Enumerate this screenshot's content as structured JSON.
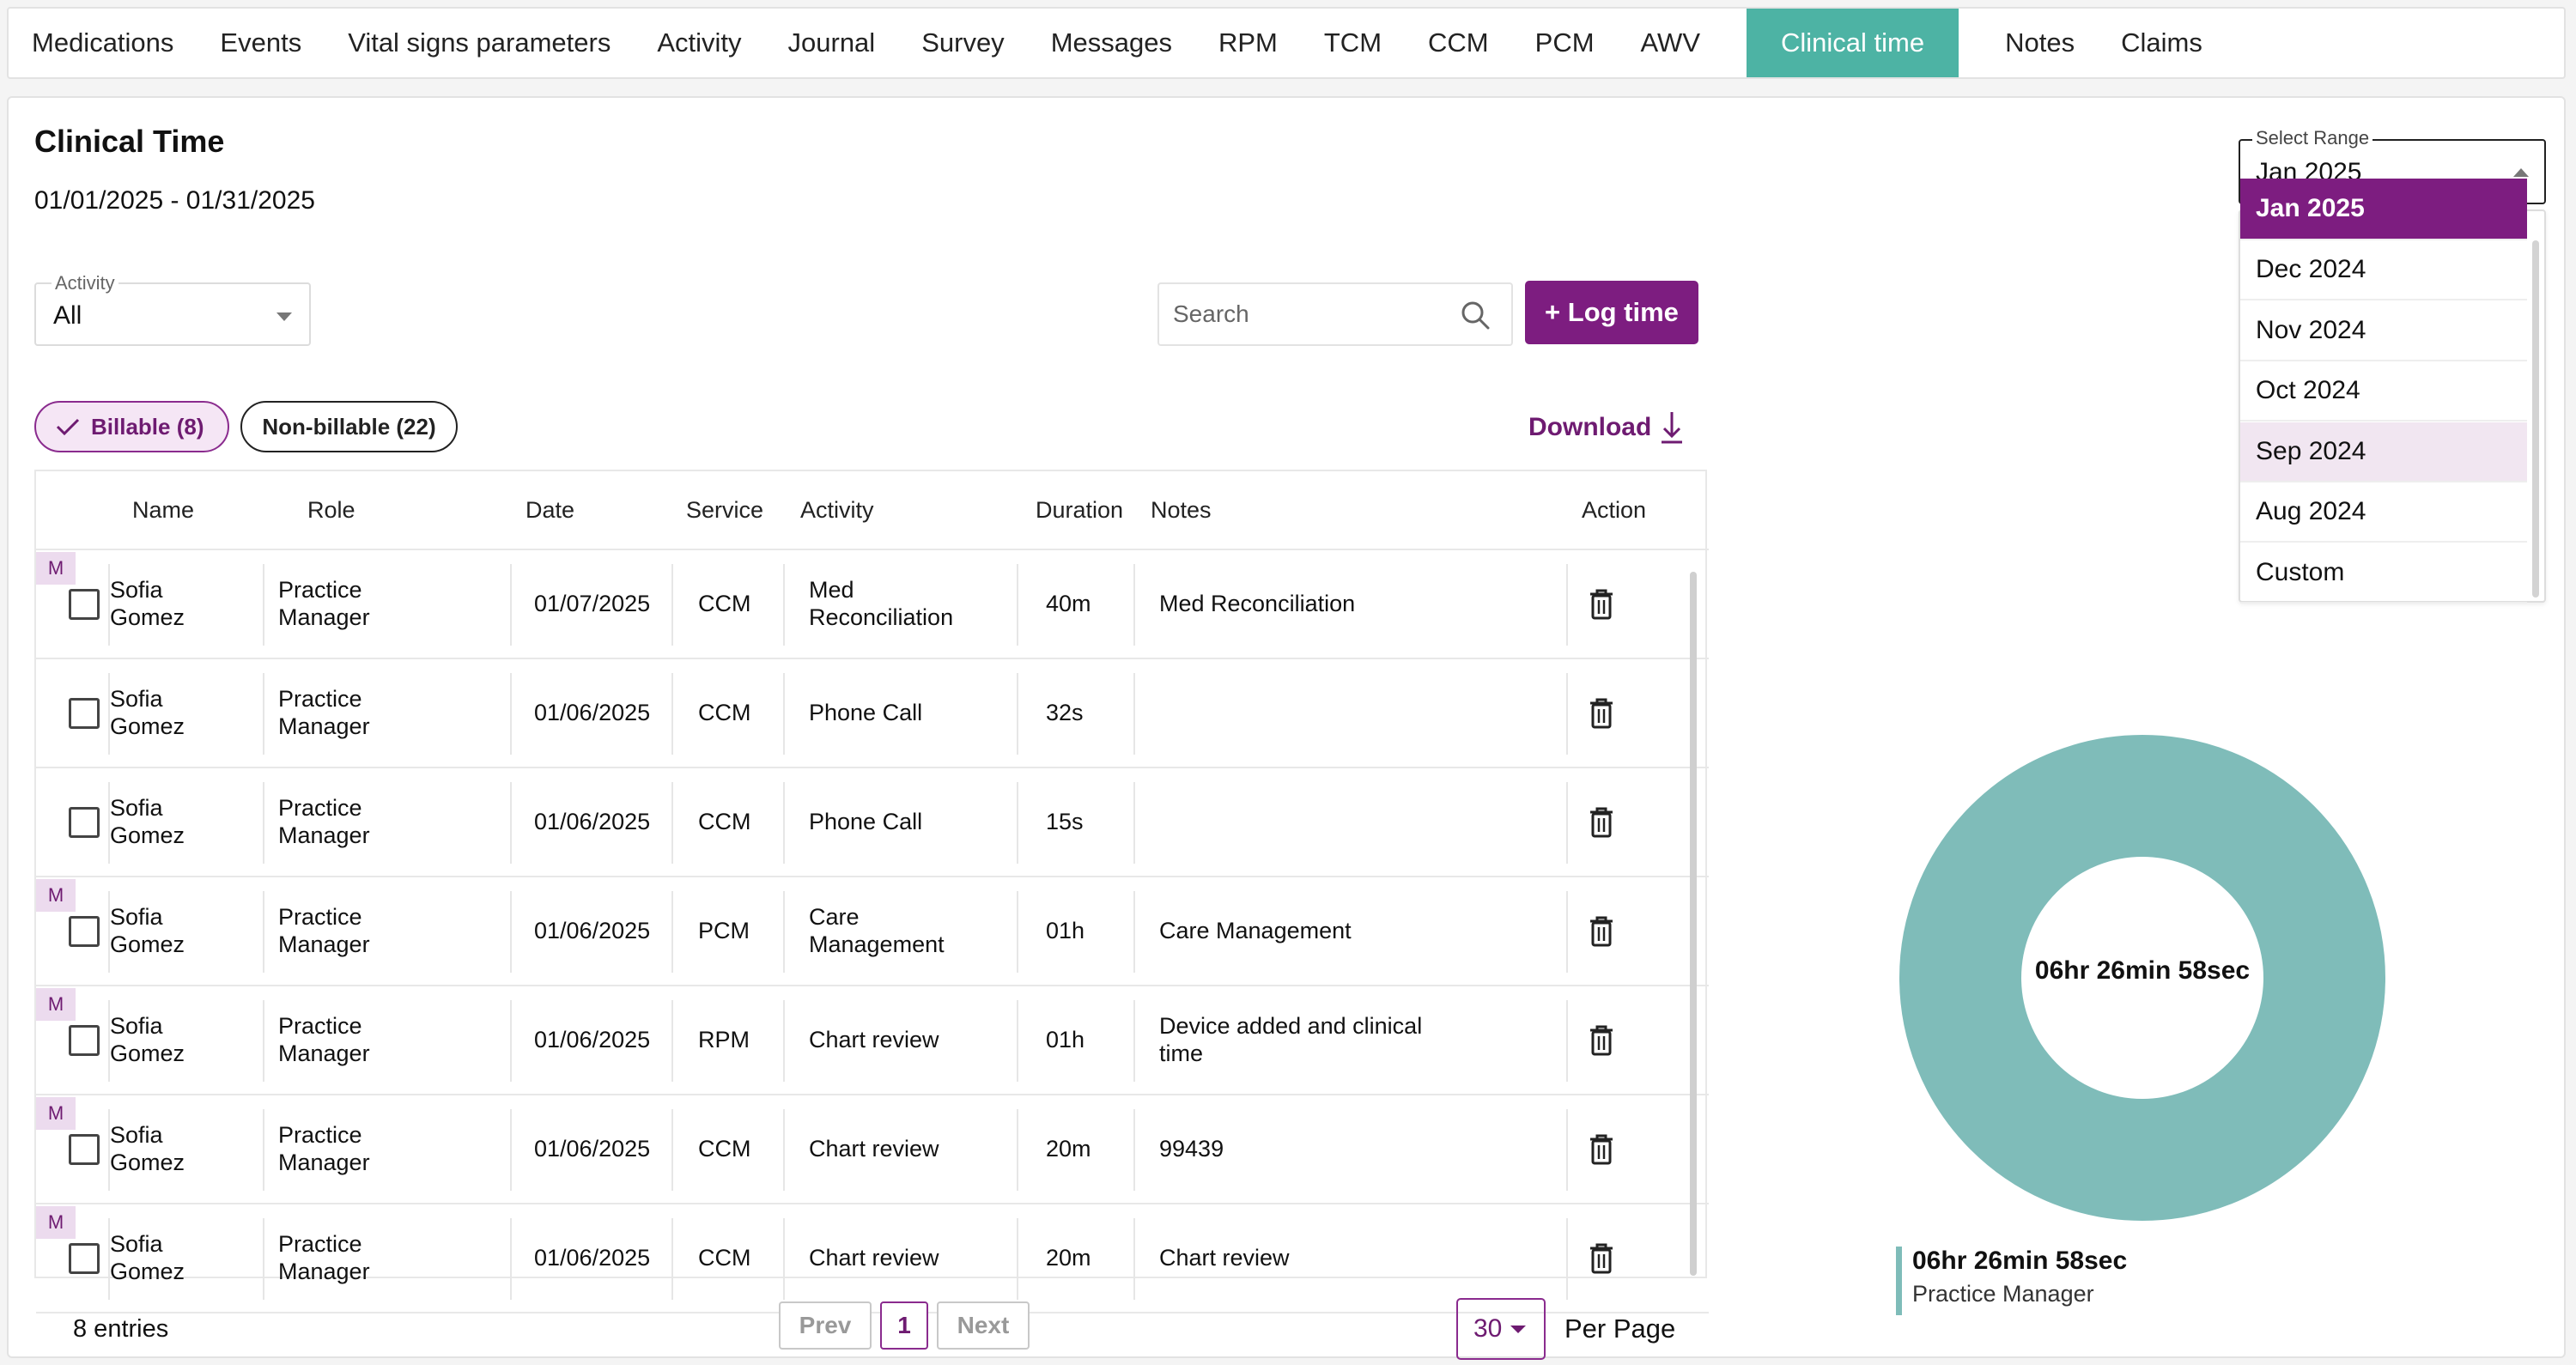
{
  "nav": {
    "tabs": [
      "Medications",
      "Events",
      "Vital signs parameters",
      "Activity",
      "Journal",
      "Survey",
      "Messages",
      "RPM",
      "TCM",
      "CCM",
      "PCM",
      "AWV",
      "Clinical time",
      "Notes",
      "Claims"
    ],
    "active_tab": "Clinical time"
  },
  "page": {
    "title": "Clinical Time",
    "date_range": "01/01/2025 - 01/31/2025"
  },
  "filters": {
    "activity_label": "Activity",
    "activity_value": "All",
    "search_placeholder": "Search",
    "log_time_label": "+ Log time",
    "billable_label": "Billable (8)",
    "nonbillable_label": "Non-billable (22)",
    "download_label": "Download"
  },
  "table": {
    "headers": [
      "Name",
      "Role",
      "Date",
      "Service",
      "Activity",
      "Duration",
      "Notes",
      "Action"
    ],
    "badge_label": "M",
    "rows": [
      {
        "m": true,
        "name": [
          "Sofia",
          "Gomez"
        ],
        "role": [
          "Practice",
          "Manager"
        ],
        "date": "01/07/2025",
        "service": "CCM",
        "activity": [
          "Med",
          "Reconciliation"
        ],
        "duration": "40m",
        "notes": [
          "Med Reconciliation"
        ]
      },
      {
        "m": false,
        "name": [
          "Sofia",
          "Gomez"
        ],
        "role": [
          "Practice",
          "Manager"
        ],
        "date": "01/06/2025",
        "service": "CCM",
        "activity": [
          "Phone Call"
        ],
        "duration": "32s",
        "notes": []
      },
      {
        "m": false,
        "name": [
          "Sofia",
          "Gomez"
        ],
        "role": [
          "Practice",
          "Manager"
        ],
        "date": "01/06/2025",
        "service": "CCM",
        "activity": [
          "Phone Call"
        ],
        "duration": "15s",
        "notes": []
      },
      {
        "m": true,
        "name": [
          "Sofia",
          "Gomez"
        ],
        "role": [
          "Practice",
          "Manager"
        ],
        "date": "01/06/2025",
        "service": "PCM",
        "activity": [
          "Care",
          "Management"
        ],
        "duration": "01h",
        "notes": [
          "Care Management"
        ]
      },
      {
        "m": true,
        "name": [
          "Sofia",
          "Gomez"
        ],
        "role": [
          "Practice",
          "Manager"
        ],
        "date": "01/06/2025",
        "service": "RPM",
        "activity": [
          "Chart review"
        ],
        "duration": "01h",
        "notes": [
          "Device added and clinical",
          "time"
        ]
      },
      {
        "m": true,
        "name": [
          "Sofia",
          "Gomez"
        ],
        "role": [
          "Practice",
          "Manager"
        ],
        "date": "01/06/2025",
        "service": "CCM",
        "activity": [
          "Chart review"
        ],
        "duration": "20m",
        "notes": [
          "99439"
        ]
      },
      {
        "m": true,
        "name": [
          "Sofia",
          "Gomez"
        ],
        "role": [
          "Practice",
          "Manager"
        ],
        "date": "01/06/2025",
        "service": "CCM",
        "activity": [
          "Chart review"
        ],
        "duration": "20m",
        "notes": [
          "Chart review"
        ]
      }
    ]
  },
  "footer": {
    "entries": "8 entries",
    "prev": "Prev",
    "page": "1",
    "next": "Next",
    "per_page_value": "30",
    "per_page_label": "Per Page"
  },
  "range": {
    "label": "Select Range",
    "value": "Jan 2025",
    "options": [
      "Jan 2025",
      "Dec 2024",
      "Nov 2024",
      "Oct 2024",
      "Sep 2024",
      "Aug 2024",
      "Custom"
    ],
    "highlighted": "Sep 2024"
  },
  "summary": {
    "total": "06hr 26min 58sec",
    "legend_total": "06hr 26min 58sec",
    "legend_role": "Practice Manager",
    "donut_color": "#7fbcb9",
    "share_fraction": 1.0
  },
  "colors": {
    "accent": "#7d1d80",
    "active_tab": "#4db3a4"
  }
}
